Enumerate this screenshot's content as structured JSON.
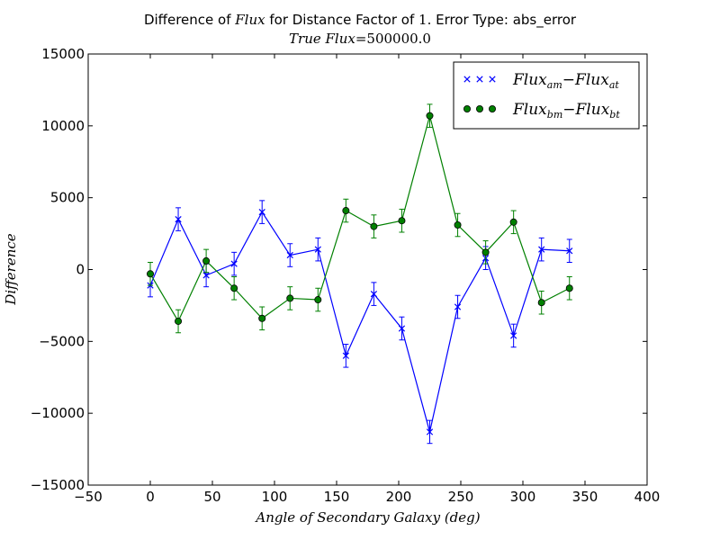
{
  "chart_data": {
    "type": "line",
    "title": {
      "prefix": "Difference of ",
      "flux": "Flux",
      "middle": " for Distance Factor of ",
      "factor": "1",
      "suffix": ". Error Type: abs_error"
    },
    "subtitle": {
      "label": "True Flux",
      "eq": "=",
      "value": "500000.0"
    },
    "xlabel": "Angle of Secondary Galaxy (deg)",
    "ylabel": "Difference",
    "xlim": [
      -50,
      400
    ],
    "ylim": [
      -15000,
      15000
    ],
    "x_ticks": [
      -50,
      0,
      50,
      100,
      150,
      200,
      250,
      300,
      350,
      400
    ],
    "y_ticks": [
      -15000,
      -10000,
      -5000,
      0,
      5000,
      10000,
      15000
    ],
    "x_tick_labels": [
      "−50",
      "0",
      "50",
      "100",
      "150",
      "200",
      "250",
      "300",
      "350",
      "400"
    ],
    "y_tick_labels": [
      "−15000",
      "−10000",
      "−5000",
      "0",
      "5000",
      "10000",
      "15000"
    ],
    "grid": false,
    "legend_position": "top-right",
    "x": [
      0,
      22.5,
      45,
      67.5,
      90,
      112.5,
      135,
      157.5,
      180,
      202.5,
      225,
      247.5,
      270,
      292.5,
      315,
      337.5
    ],
    "series": [
      {
        "name": "Flux_am - Flux_at",
        "legend": {
          "a": "Flux",
          "a_sub": "am",
          "minus": "−",
          "b": "Flux",
          "b_sub": "at"
        },
        "color": "#0000ff",
        "marker": "x",
        "values": [
          -1100,
          3500,
          -400,
          400,
          4000,
          1000,
          1400,
          -6000,
          -1700,
          -4100,
          -11300,
          -2600,
          800,
          -4600,
          1400,
          1300
        ],
        "errors": [
          800,
          800,
          800,
          800,
          800,
          800,
          800,
          800,
          800,
          800,
          800,
          800,
          800,
          800,
          800,
          800
        ]
      },
      {
        "name": "Flux_bm - Flux_bt",
        "legend": {
          "a": "Flux",
          "a_sub": "bm",
          "minus": "−",
          "b": "Flux",
          "b_sub": "bt"
        },
        "color": "#008000",
        "marker": "o",
        "values": [
          -300,
          -3600,
          600,
          -1300,
          -3400,
          -2000,
          -2100,
          4100,
          3000,
          3400,
          10700,
          3100,
          1200,
          3300,
          -2300,
          -1300
        ],
        "errors": [
          800,
          800,
          800,
          800,
          800,
          800,
          800,
          800,
          800,
          800,
          800,
          800,
          800,
          800,
          800,
          800
        ]
      }
    ]
  },
  "colors": {
    "axes": "#000000",
    "background": "#ffffff",
    "marker_face_o": "#008000"
  }
}
